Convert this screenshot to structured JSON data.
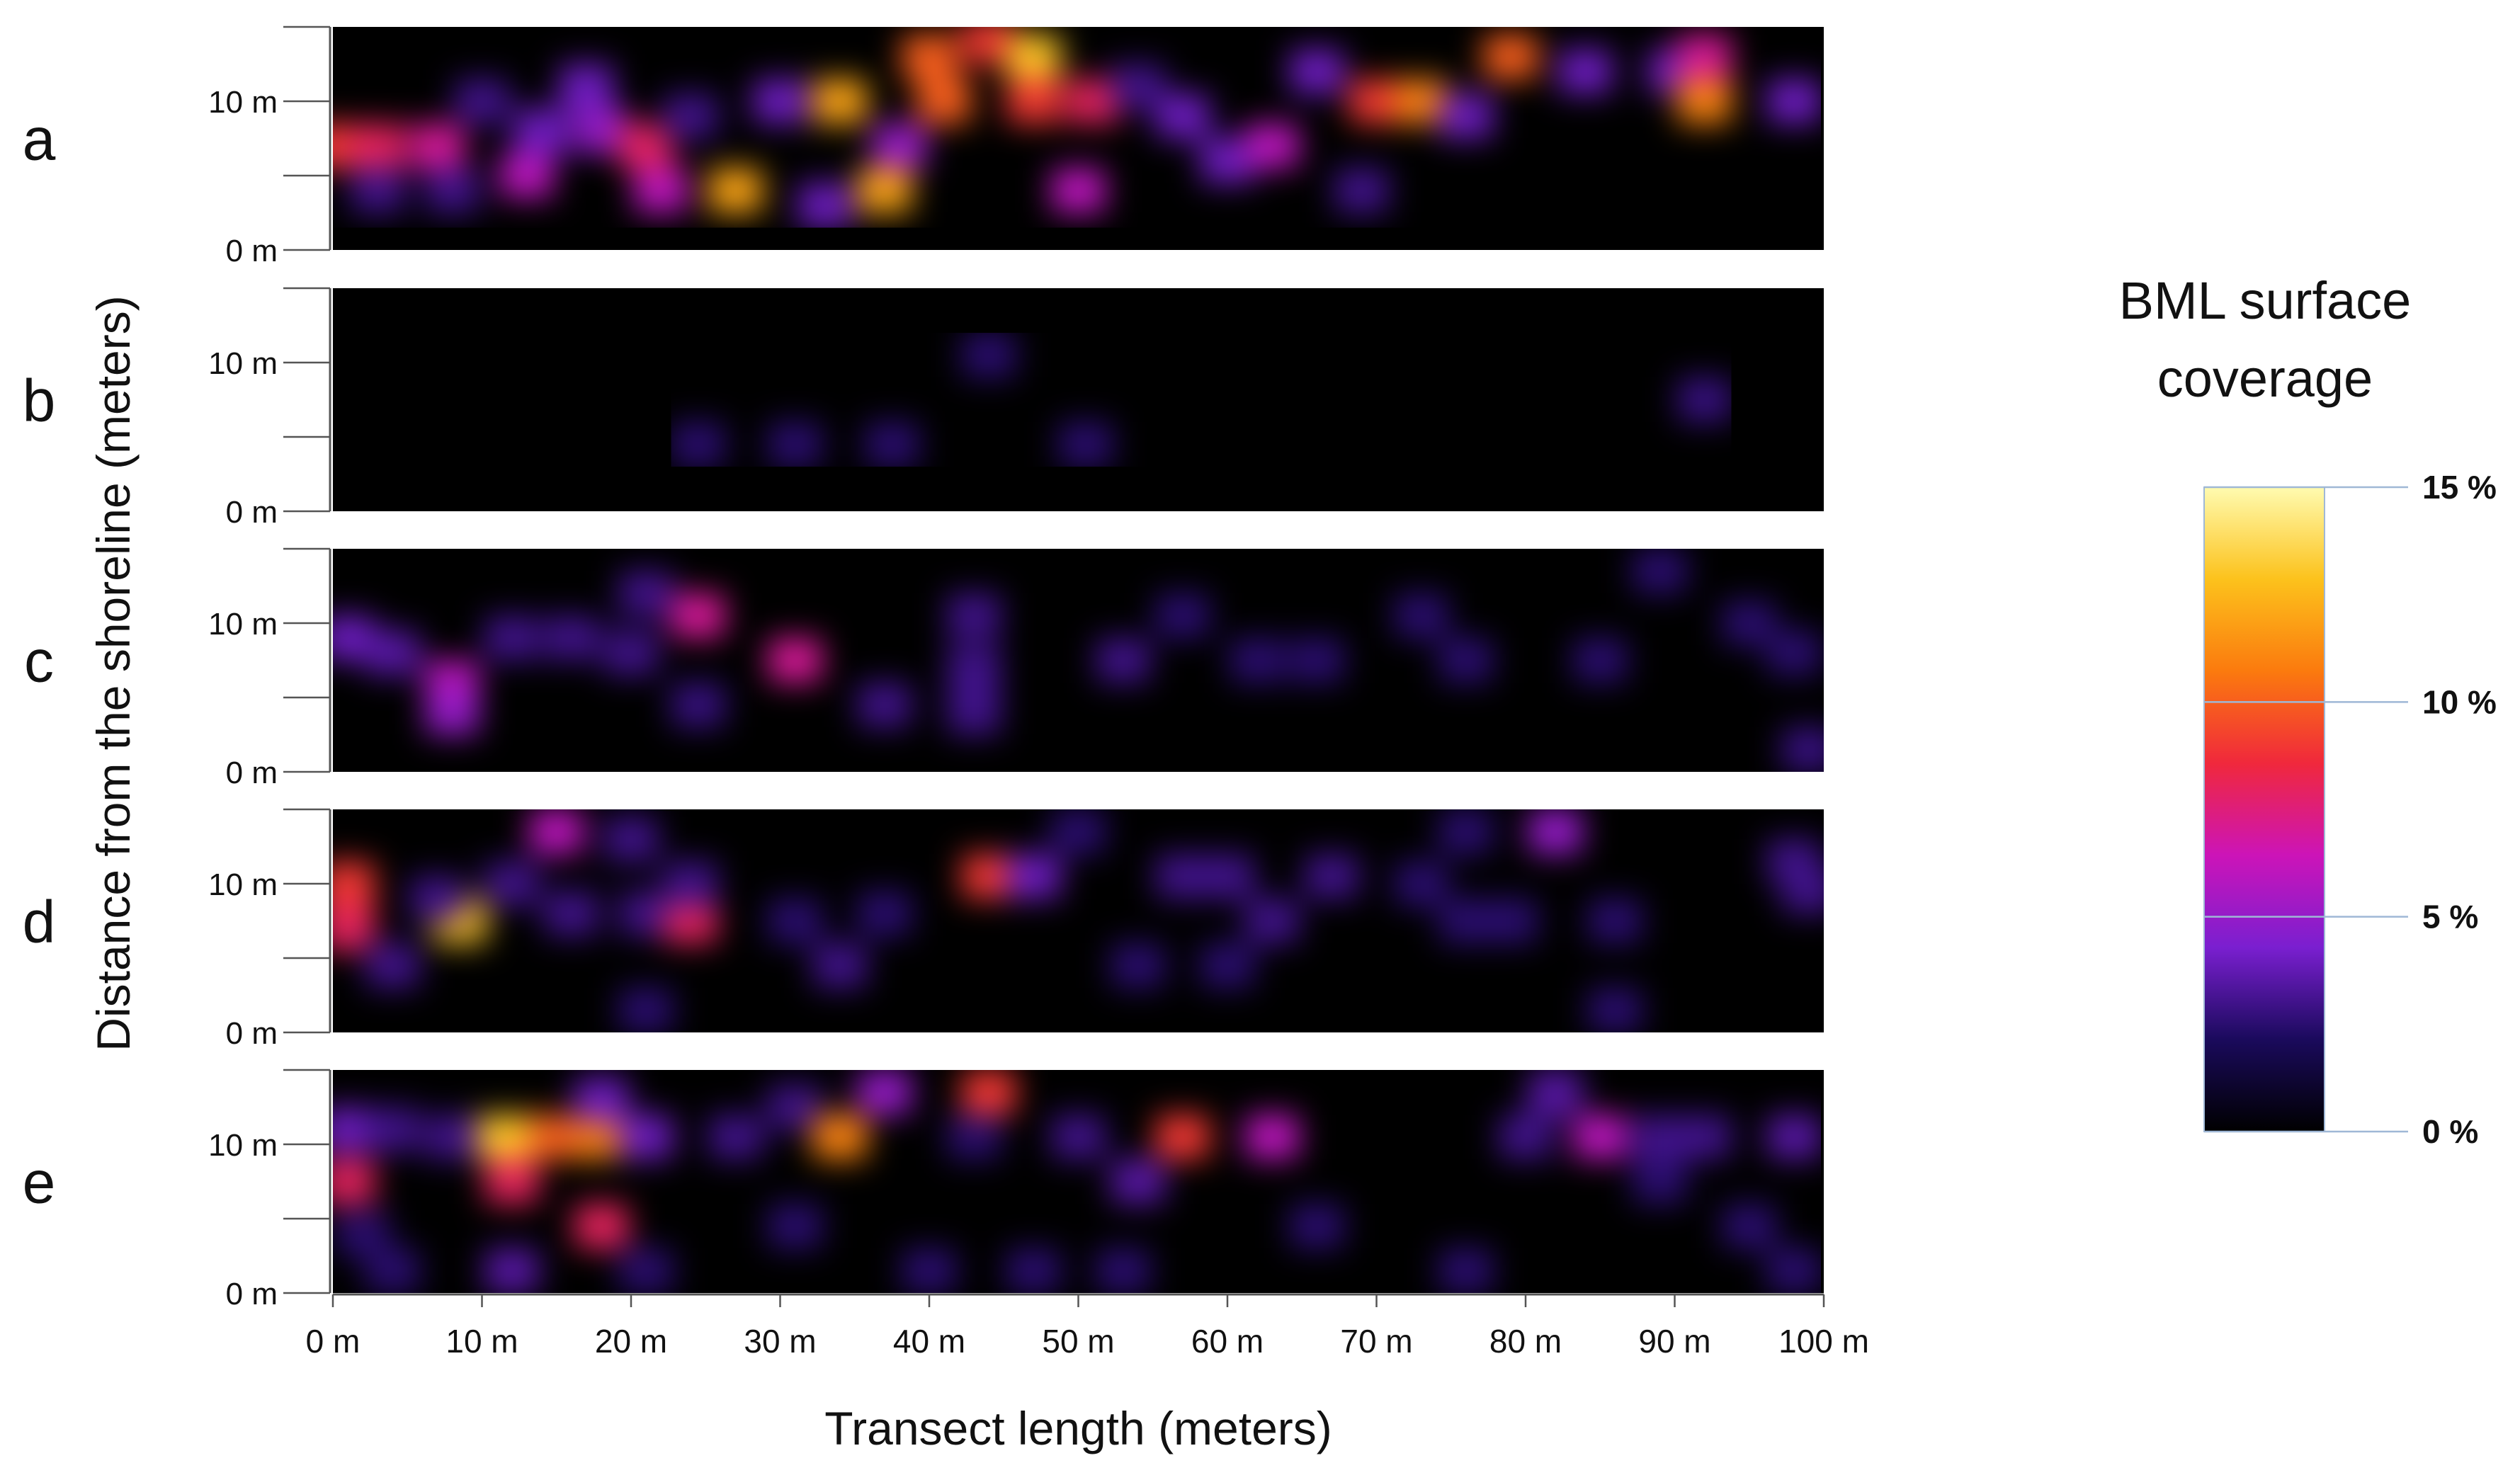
{
  "chart_data": {
    "type": "heatmap",
    "ylabel": "Distance from the shoreline (meters)",
    "xlabel": "Transect length (meters)",
    "x_ticks": [
      "0 m",
      "10 m",
      "20 m",
      "30 m",
      "40 m",
      "50 m",
      "60 m",
      "70 m",
      "80 m",
      "90 m",
      "100 m"
    ],
    "x_range": [
      0,
      100
    ],
    "y_range": [
      0,
      15
    ],
    "y_ticks": [
      "0 m",
      "10 m"
    ],
    "colorbar": {
      "title": "BML surface coverage",
      "min": 0,
      "max": 15,
      "tick_labels": [
        "0 %",
        "5 %",
        "10 %",
        "15 %"
      ],
      "tick_values": [
        0,
        5,
        10,
        15
      ],
      "colors": [
        "#000000",
        "#1a0a5c",
        "#7a1fd0",
        "#cc14b8",
        "#f0283c",
        "#fb7a0e",
        "#fcc21c",
        "#fffbb0"
      ]
    },
    "panels": [
      {
        "label": "a",
        "hotspots": [
          {
            "x": 0,
            "y": 7,
            "v": 9
          },
          {
            "x": 3,
            "y": 7,
            "v": 8
          },
          {
            "x": 7,
            "y": 7,
            "v": 7
          },
          {
            "x": 3,
            "y": 4,
            "v": 3
          },
          {
            "x": 8,
            "y": 4,
            "v": 3
          },
          {
            "x": 10,
            "y": 10,
            "v": 3
          },
          {
            "x": 13,
            "y": 5,
            "v": 6
          },
          {
            "x": 14,
            "y": 8,
            "v": 4
          },
          {
            "x": 18,
            "y": 8,
            "v": 5
          },
          {
            "x": 21,
            "y": 7,
            "v": 8
          },
          {
            "x": 22,
            "y": 4,
            "v": 6
          },
          {
            "x": 17,
            "y": 11,
            "v": 4
          },
          {
            "x": 27,
            "y": 4,
            "v": 12
          },
          {
            "x": 24,
            "y": 9,
            "v": 3
          },
          {
            "x": 30,
            "y": 10,
            "v": 4
          },
          {
            "x": 34,
            "y": 10,
            "v": 12
          },
          {
            "x": 33,
            "y": 3,
            "v": 4
          },
          {
            "x": 37,
            "y": 4,
            "v": 12
          },
          {
            "x": 38,
            "y": 7,
            "v": 5
          },
          {
            "x": 40,
            "y": 13,
            "v": 10
          },
          {
            "x": 44,
            "y": 14,
            "v": 9
          },
          {
            "x": 41,
            "y": 10,
            "v": 10
          },
          {
            "x": 47,
            "y": 13,
            "v": 13
          },
          {
            "x": 47,
            "y": 10,
            "v": 9
          },
          {
            "x": 51,
            "y": 10,
            "v": 8
          },
          {
            "x": 50,
            "y": 4,
            "v": 6
          },
          {
            "x": 54,
            "y": 11,
            "v": 3
          },
          {
            "x": 57,
            "y": 9,
            "v": 4
          },
          {
            "x": 60,
            "y": 6,
            "v": 4
          },
          {
            "x": 63,
            "y": 7,
            "v": 6
          },
          {
            "x": 66,
            "y": 12,
            "v": 4
          },
          {
            "x": 70,
            "y": 10,
            "v": 9
          },
          {
            "x": 73,
            "y": 10,
            "v": 11
          },
          {
            "x": 69,
            "y": 4,
            "v": 3
          },
          {
            "x": 76,
            "y": 9,
            "v": 4
          },
          {
            "x": 79,
            "y": 13,
            "v": 10
          },
          {
            "x": 84,
            "y": 12,
            "v": 4
          },
          {
            "x": 90,
            "y": 12,
            "v": 4
          },
          {
            "x": 92,
            "y": 10,
            "v": 11
          },
          {
            "x": 92,
            "y": 13,
            "v": 7
          },
          {
            "x": 98,
            "y": 10,
            "v": 4
          }
        ]
      },
      {
        "label": "b",
        "hotspots": [
          {
            "x": 44,
            "y": 10.5,
            "v": 2.5
          },
          {
            "x": 24.5,
            "y": 4.5,
            "v": 2.5
          },
          {
            "x": 31,
            "y": 4.5,
            "v": 2.5
          },
          {
            "x": 37.5,
            "y": 4.5,
            "v": 2.5
          },
          {
            "x": 50.5,
            "y": 4.5,
            "v": 2.5
          },
          {
            "x": 92,
            "y": 7.5,
            "v": 2.8
          }
        ]
      },
      {
        "label": "c",
        "hotspots": [
          {
            "x": 1,
            "y": 9,
            "v": 4
          },
          {
            "x": 4,
            "y": 8,
            "v": 3.5
          },
          {
            "x": 8,
            "y": 6,
            "v": 6
          },
          {
            "x": 8,
            "y": 4,
            "v": 5
          },
          {
            "x": 12,
            "y": 9,
            "v": 3
          },
          {
            "x": 16,
            "y": 9,
            "v": 3
          },
          {
            "x": 20,
            "y": 8,
            "v": 3
          },
          {
            "x": 21,
            "y": 12,
            "v": 3
          },
          {
            "x": 24.5,
            "y": 10.5,
            "v": 7
          },
          {
            "x": 24.5,
            "y": 4.5,
            "v": 2.8
          },
          {
            "x": 31,
            "y": 7.5,
            "v": 7
          },
          {
            "x": 37,
            "y": 4.5,
            "v": 3
          },
          {
            "x": 43,
            "y": 10.5,
            "v": 3
          },
          {
            "x": 43,
            "y": 7,
            "v": 3
          },
          {
            "x": 43,
            "y": 4,
            "v": 3
          },
          {
            "x": 53,
            "y": 7.5,
            "v": 3
          },
          {
            "x": 57,
            "y": 10.5,
            "v": 2.5
          },
          {
            "x": 62,
            "y": 7.5,
            "v": 2.5
          },
          {
            "x": 66,
            "y": 7.5,
            "v": 2.5
          },
          {
            "x": 73,
            "y": 10.5,
            "v": 2.5
          },
          {
            "x": 76,
            "y": 7.5,
            "v": 2.5
          },
          {
            "x": 85,
            "y": 7.5,
            "v": 2.5
          },
          {
            "x": 89,
            "y": 13.5,
            "v": 2.5
          },
          {
            "x": 95,
            "y": 10,
            "v": 2.5
          },
          {
            "x": 98,
            "y": 8,
            "v": 2.5
          },
          {
            "x": 99,
            "y": 1.5,
            "v": 2.8
          }
        ]
      },
      {
        "label": "d",
        "hotspots": [
          {
            "x": 1,
            "y": 10,
            "v": 9
          },
          {
            "x": 1,
            "y": 7,
            "v": 8
          },
          {
            "x": 8.5,
            "y": 7.5,
            "v": 13
          },
          {
            "x": 4,
            "y": 4.5,
            "v": 3
          },
          {
            "x": 7,
            "y": 9,
            "v": 3
          },
          {
            "x": 12,
            "y": 10,
            "v": 3
          },
          {
            "x": 15,
            "y": 13.5,
            "v": 6
          },
          {
            "x": 16,
            "y": 8,
            "v": 3
          },
          {
            "x": 20,
            "y": 13,
            "v": 3
          },
          {
            "x": 21,
            "y": 8,
            "v": 3
          },
          {
            "x": 24,
            "y": 7.5,
            "v": 8
          },
          {
            "x": 24,
            "y": 10,
            "v": 3
          },
          {
            "x": 21,
            "y": 1.5,
            "v": 2.5
          },
          {
            "x": 31,
            "y": 7.5,
            "v": 2.5
          },
          {
            "x": 34,
            "y": 4.5,
            "v": 3
          },
          {
            "x": 37,
            "y": 8,
            "v": 2.5
          },
          {
            "x": 44,
            "y": 10.5,
            "v": 9
          },
          {
            "x": 47,
            "y": 10.5,
            "v": 4
          },
          {
            "x": 50,
            "y": 13.5,
            "v": 2.5
          },
          {
            "x": 54,
            "y": 4.5,
            "v": 2.5
          },
          {
            "x": 57,
            "y": 10.5,
            "v": 3
          },
          {
            "x": 60,
            "y": 10.5,
            "v": 3
          },
          {
            "x": 60,
            "y": 4.5,
            "v": 2.5
          },
          {
            "x": 63,
            "y": 7.5,
            "v": 3
          },
          {
            "x": 67,
            "y": 10.5,
            "v": 3
          },
          {
            "x": 73,
            "y": 10,
            "v": 2.5
          },
          {
            "x": 76,
            "y": 7.5,
            "v": 2.5
          },
          {
            "x": 79,
            "y": 7.5,
            "v": 2.5
          },
          {
            "x": 76,
            "y": 13.5,
            "v": 2.5
          },
          {
            "x": 82,
            "y": 13.5,
            "v": 5
          },
          {
            "x": 86,
            "y": 7.5,
            "v": 2.5
          },
          {
            "x": 86,
            "y": 1.5,
            "v": 2.5
          },
          {
            "x": 98,
            "y": 11.5,
            "v": 3
          },
          {
            "x": 99,
            "y": 9.5,
            "v": 3
          }
        ]
      },
      {
        "label": "e",
        "hotspots": [
          {
            "x": 1,
            "y": 11,
            "v": 4
          },
          {
            "x": 1,
            "y": 7.5,
            "v": 8
          },
          {
            "x": 4,
            "y": 11,
            "v": 3
          },
          {
            "x": 8,
            "y": 10.5,
            "v": 3
          },
          {
            "x": 2,
            "y": 4,
            "v": 2.5
          },
          {
            "x": 4,
            "y": 1.5,
            "v": 2.5
          },
          {
            "x": 11.5,
            "y": 10.5,
            "v": 13
          },
          {
            "x": 12,
            "y": 7.5,
            "v": 8
          },
          {
            "x": 15,
            "y": 10.5,
            "v": 10
          },
          {
            "x": 18,
            "y": 10.5,
            "v": 11
          },
          {
            "x": 18,
            "y": 13,
            "v": 4
          },
          {
            "x": 18,
            "y": 4.5,
            "v": 8
          },
          {
            "x": 21,
            "y": 10.5,
            "v": 4
          },
          {
            "x": 12,
            "y": 1.5,
            "v": 3.5
          },
          {
            "x": 21,
            "y": 1.5,
            "v": 2.5
          },
          {
            "x": 27,
            "y": 10.5,
            "v": 3
          },
          {
            "x": 31,
            "y": 12.5,
            "v": 3
          },
          {
            "x": 31,
            "y": 4.5,
            "v": 2.5
          },
          {
            "x": 34,
            "y": 10.5,
            "v": 11
          },
          {
            "x": 37,
            "y": 13.5,
            "v": 5
          },
          {
            "x": 40,
            "y": 1.5,
            "v": 2.5
          },
          {
            "x": 44,
            "y": 13.5,
            "v": 9
          },
          {
            "x": 43,
            "y": 10.5,
            "v": 2.5
          },
          {
            "x": 47,
            "y": 1.5,
            "v": 2.5
          },
          {
            "x": 50,
            "y": 10.5,
            "v": 3
          },
          {
            "x": 54,
            "y": 7.5,
            "v": 3.5
          },
          {
            "x": 57,
            "y": 10.5,
            "v": 9
          },
          {
            "x": 53,
            "y": 1.5,
            "v": 2.5
          },
          {
            "x": 63,
            "y": 10.5,
            "v": 6
          },
          {
            "x": 66,
            "y": 4.5,
            "v": 2.5
          },
          {
            "x": 76,
            "y": 1.5,
            "v": 2.5
          },
          {
            "x": 80,
            "y": 10.5,
            "v": 3
          },
          {
            "x": 82,
            "y": 13.5,
            "v": 3.5
          },
          {
            "x": 85,
            "y": 10.5,
            "v": 6
          },
          {
            "x": 89,
            "y": 10.5,
            "v": 3
          },
          {
            "x": 92,
            "y": 10.5,
            "v": 3
          },
          {
            "x": 89,
            "y": 7.5,
            "v": 2.5
          },
          {
            "x": 95,
            "y": 4.5,
            "v": 2.5
          },
          {
            "x": 98,
            "y": 10.5,
            "v": 3.5
          },
          {
            "x": 98,
            "y": 1.5,
            "v": 2.5
          }
        ]
      }
    ]
  }
}
